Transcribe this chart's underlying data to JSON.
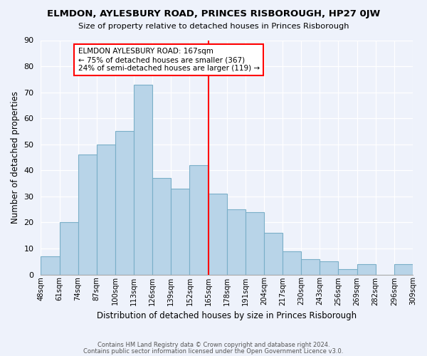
{
  "title": "ELMDON, AYLESBURY ROAD, PRINCES RISBOROUGH, HP27 0JW",
  "subtitle": "Size of property relative to detached houses in Princes Risborough",
  "xlabel": "Distribution of detached houses by size in Princes Risborough",
  "ylabel": "Number of detached properties",
  "footer_lines": [
    "Contains HM Land Registry data © Crown copyright and database right 2024.",
    "Contains public sector information licensed under the Open Government Licence v3.0."
  ],
  "tick_labels": [
    "48sqm",
    "61sqm",
    "74sqm",
    "87sqm",
    "100sqm",
    "113sqm",
    "126sqm",
    "139sqm",
    "152sqm",
    "165sqm",
    "178sqm",
    "191sqm",
    "204sqm",
    "217sqm",
    "230sqm",
    "243sqm",
    "256sqm",
    "269sqm",
    "282sqm",
    "296sqm",
    "309sqm"
  ],
  "values": [
    7,
    20,
    46,
    50,
    55,
    73,
    37,
    33,
    42,
    31,
    25,
    24,
    16,
    9,
    6,
    5,
    2,
    4,
    0,
    4
  ],
  "bar_color": "#b8d4e8",
  "bar_edge_color": "#7aafc8",
  "vline_position": 9.0,
  "vline_color": "red",
  "annotation_title": "ELMDON AYLESBURY ROAD: 167sqm",
  "annotation_line1": "← 75% of detached houses are smaller (367)",
  "annotation_line2": "24% of semi-detached houses are larger (119) →",
  "annotation_box_facecolor": "#ffffff",
  "annotation_box_edgecolor": "red",
  "ylim": [
    0,
    90
  ],
  "yticks": [
    0,
    10,
    20,
    30,
    40,
    50,
    60,
    70,
    80,
    90
  ],
  "background_color": "#eef2fb"
}
